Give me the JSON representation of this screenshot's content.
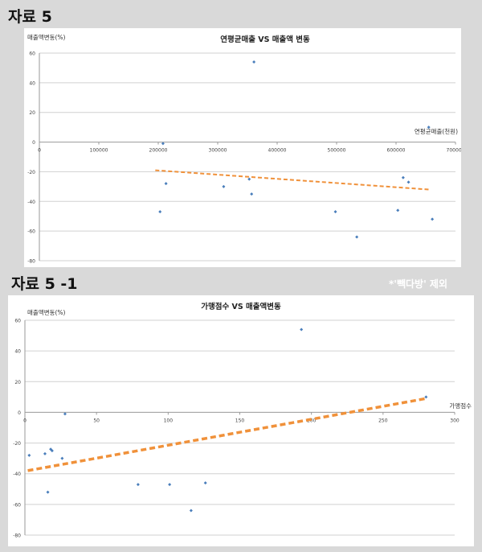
{
  "page": {
    "section1_title": "자료 5",
    "section2_title": "자료 5 -1",
    "note": "*'빽다방' 제외"
  },
  "chart_data": [
    {
      "type": "scatter",
      "title": "연평균매출 VS 매출액 변동",
      "ylabel": "매출액변동(%)",
      "xlabel": "연평균매출(천원)",
      "xlim": [
        0,
        700000
      ],
      "ylim": [
        -80,
        60
      ],
      "x_ticks": [
        0,
        100000,
        200000,
        300000,
        400000,
        500000,
        600000,
        700000
      ],
      "y_ticks": [
        -80,
        -60,
        -40,
        -20,
        0,
        20,
        40,
        60
      ],
      "grid": true,
      "legend": "none",
      "marker_color": "#4a7ebb",
      "trend_color": "#f0913a",
      "points": [
        {
          "x": 203000,
          "y": -47
        },
        {
          "x": 208000,
          "y": -1
        },
        {
          "x": 213000,
          "y": -28
        },
        {
          "x": 310000,
          "y": -30
        },
        {
          "x": 353000,
          "y": -25
        },
        {
          "x": 357000,
          "y": -35
        },
        {
          "x": 361000,
          "y": 54
        },
        {
          "x": 498000,
          "y": -47
        },
        {
          "x": 534000,
          "y": -64
        },
        {
          "x": 603000,
          "y": -46
        },
        {
          "x": 612000,
          "y": -24
        },
        {
          "x": 621000,
          "y": -27
        },
        {
          "x": 655000,
          "y": 10
        },
        {
          "x": 661000,
          "y": -52
        }
      ],
      "trendline": {
        "x": [
          195000,
          655000
        ],
        "y": [
          -19,
          -32
        ]
      }
    },
    {
      "type": "scatter",
      "title": "가맹점수 VS 매출액변동",
      "ylabel": "매출액변동(%)",
      "xlabel": "가맹점수",
      "xlim": [
        0,
        300
      ],
      "ylim": [
        -80,
        60
      ],
      "x_ticks": [
        0,
        50,
        100,
        150,
        200,
        250,
        300
      ],
      "y_ticks": [
        -80,
        -60,
        -40,
        -20,
        0,
        20,
        40,
        60
      ],
      "grid": true,
      "legend": "none",
      "marker_color": "#4a7ebb",
      "trend_color": "#f0913a",
      "points": [
        {
          "x": 3,
          "y": -28
        },
        {
          "x": 14,
          "y": -27
        },
        {
          "x": 16,
          "y": -52
        },
        {
          "x": 18,
          "y": -24
        },
        {
          "x": 19,
          "y": -25
        },
        {
          "x": 26,
          "y": -30
        },
        {
          "x": 28,
          "y": -1
        },
        {
          "x": 79,
          "y": -47
        },
        {
          "x": 101,
          "y": -47
        },
        {
          "x": 116,
          "y": -64
        },
        {
          "x": 126,
          "y": -46
        },
        {
          "x": 193,
          "y": 54
        },
        {
          "x": 280,
          "y": 10
        }
      ],
      "trendline": {
        "x": [
          2,
          280
        ],
        "y": [
          -38,
          9
        ]
      }
    }
  ]
}
